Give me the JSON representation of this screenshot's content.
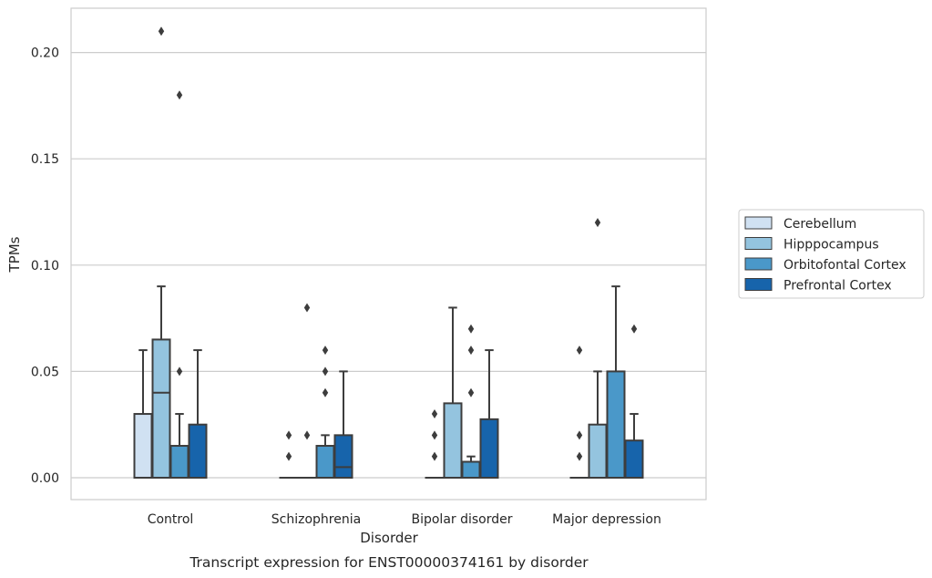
{
  "chart_data": {
    "type": "box",
    "title": "",
    "caption": "Transcript expression for ENST00000374161 by disorder",
    "xlabel": "Disorder",
    "ylabel": "TPMs",
    "ylim": [
      -0.01,
      0.22
    ],
    "yticks": [
      "0.00",
      "0.05",
      "0.10",
      "0.15",
      "0.20"
    ],
    "ytick_values": [
      0.0,
      0.05,
      0.1,
      0.15,
      0.2
    ],
    "grid": "horizontal",
    "legend_placement": "right",
    "categories": [
      "Control",
      "Schizophrenia",
      "Bipolar disorder",
      "Major depression"
    ],
    "series": [
      {
        "name": "Cerebellum",
        "color": "#d0e1f2",
        "boxes": [
          {
            "q1": 0.0,
            "median": 0.0,
            "q3": 0.03,
            "whisker_low": 0.0,
            "whisker_high": 0.06,
            "outliers": []
          },
          {
            "q1": 0.0,
            "median": 0.0,
            "q3": 0.0,
            "whisker_low": 0.0,
            "whisker_high": 0.0,
            "outliers": [
              0.01,
              0.02
            ]
          },
          {
            "q1": 0.0,
            "median": 0.0,
            "q3": 0.0,
            "whisker_low": 0.0,
            "whisker_high": 0.0,
            "outliers": [
              0.01,
              0.02,
              0.03
            ]
          },
          {
            "q1": 0.0,
            "median": 0.0,
            "q3": 0.0,
            "whisker_low": 0.0,
            "whisker_high": 0.0,
            "outliers": [
              0.01,
              0.02,
              0.06
            ]
          }
        ]
      },
      {
        "name": "Hipppocampus",
        "color": "#94c4df",
        "boxes": [
          {
            "q1": 0.0,
            "median": 0.04,
            "q3": 0.065,
            "whisker_low": 0.0,
            "whisker_high": 0.09,
            "outliers": [
              0.21
            ]
          },
          {
            "q1": 0.0,
            "median": 0.0,
            "q3": 0.0,
            "whisker_low": 0.0,
            "whisker_high": 0.0,
            "outliers": [
              0.02,
              0.08
            ]
          },
          {
            "q1": 0.0,
            "median": 0.0,
            "q3": 0.035,
            "whisker_low": 0.0,
            "whisker_high": 0.08,
            "outliers": []
          },
          {
            "q1": 0.0,
            "median": 0.0,
            "q3": 0.025,
            "whisker_low": 0.0,
            "whisker_high": 0.05,
            "outliers": [
              0.12
            ]
          }
        ]
      },
      {
        "name": "Orbitofontal Cortex",
        "color": "#4a98c9",
        "boxes": [
          {
            "q1": 0.0,
            "median": 0.0,
            "q3": 0.015,
            "whisker_low": 0.0,
            "whisker_high": 0.03,
            "outliers": [
              0.05,
              0.18
            ]
          },
          {
            "q1": 0.0,
            "median": 0.0,
            "q3": 0.015,
            "whisker_low": 0.0,
            "whisker_high": 0.02,
            "outliers": [
              0.04,
              0.05,
              0.06
            ]
          },
          {
            "q1": 0.0,
            "median": 0.0,
            "q3": 0.0075,
            "whisker_low": 0.0,
            "whisker_high": 0.01,
            "outliers": [
              0.04,
              0.06,
              0.07
            ]
          },
          {
            "q1": 0.0,
            "median": 0.0,
            "q3": 0.05,
            "whisker_low": 0.0,
            "whisker_high": 0.09,
            "outliers": []
          }
        ]
      },
      {
        "name": "Prefrontal Cortex",
        "color": "#1764ab",
        "boxes": [
          {
            "q1": 0.0,
            "median": 0.0,
            "q3": 0.025,
            "whisker_low": 0.0,
            "whisker_high": 0.06,
            "outliers": []
          },
          {
            "q1": 0.0,
            "median": 0.005,
            "q3": 0.02,
            "whisker_low": 0.0,
            "whisker_high": 0.05,
            "outliers": []
          },
          {
            "q1": 0.0,
            "median": 0.0,
            "q3": 0.0275,
            "whisker_low": 0.0,
            "whisker_high": 0.06,
            "outliers": []
          },
          {
            "q1": 0.0,
            "median": 0.0,
            "q3": 0.0175,
            "whisker_low": 0.0,
            "whisker_high": 0.03,
            "outliers": [
              0.07
            ]
          }
        ]
      }
    ]
  }
}
